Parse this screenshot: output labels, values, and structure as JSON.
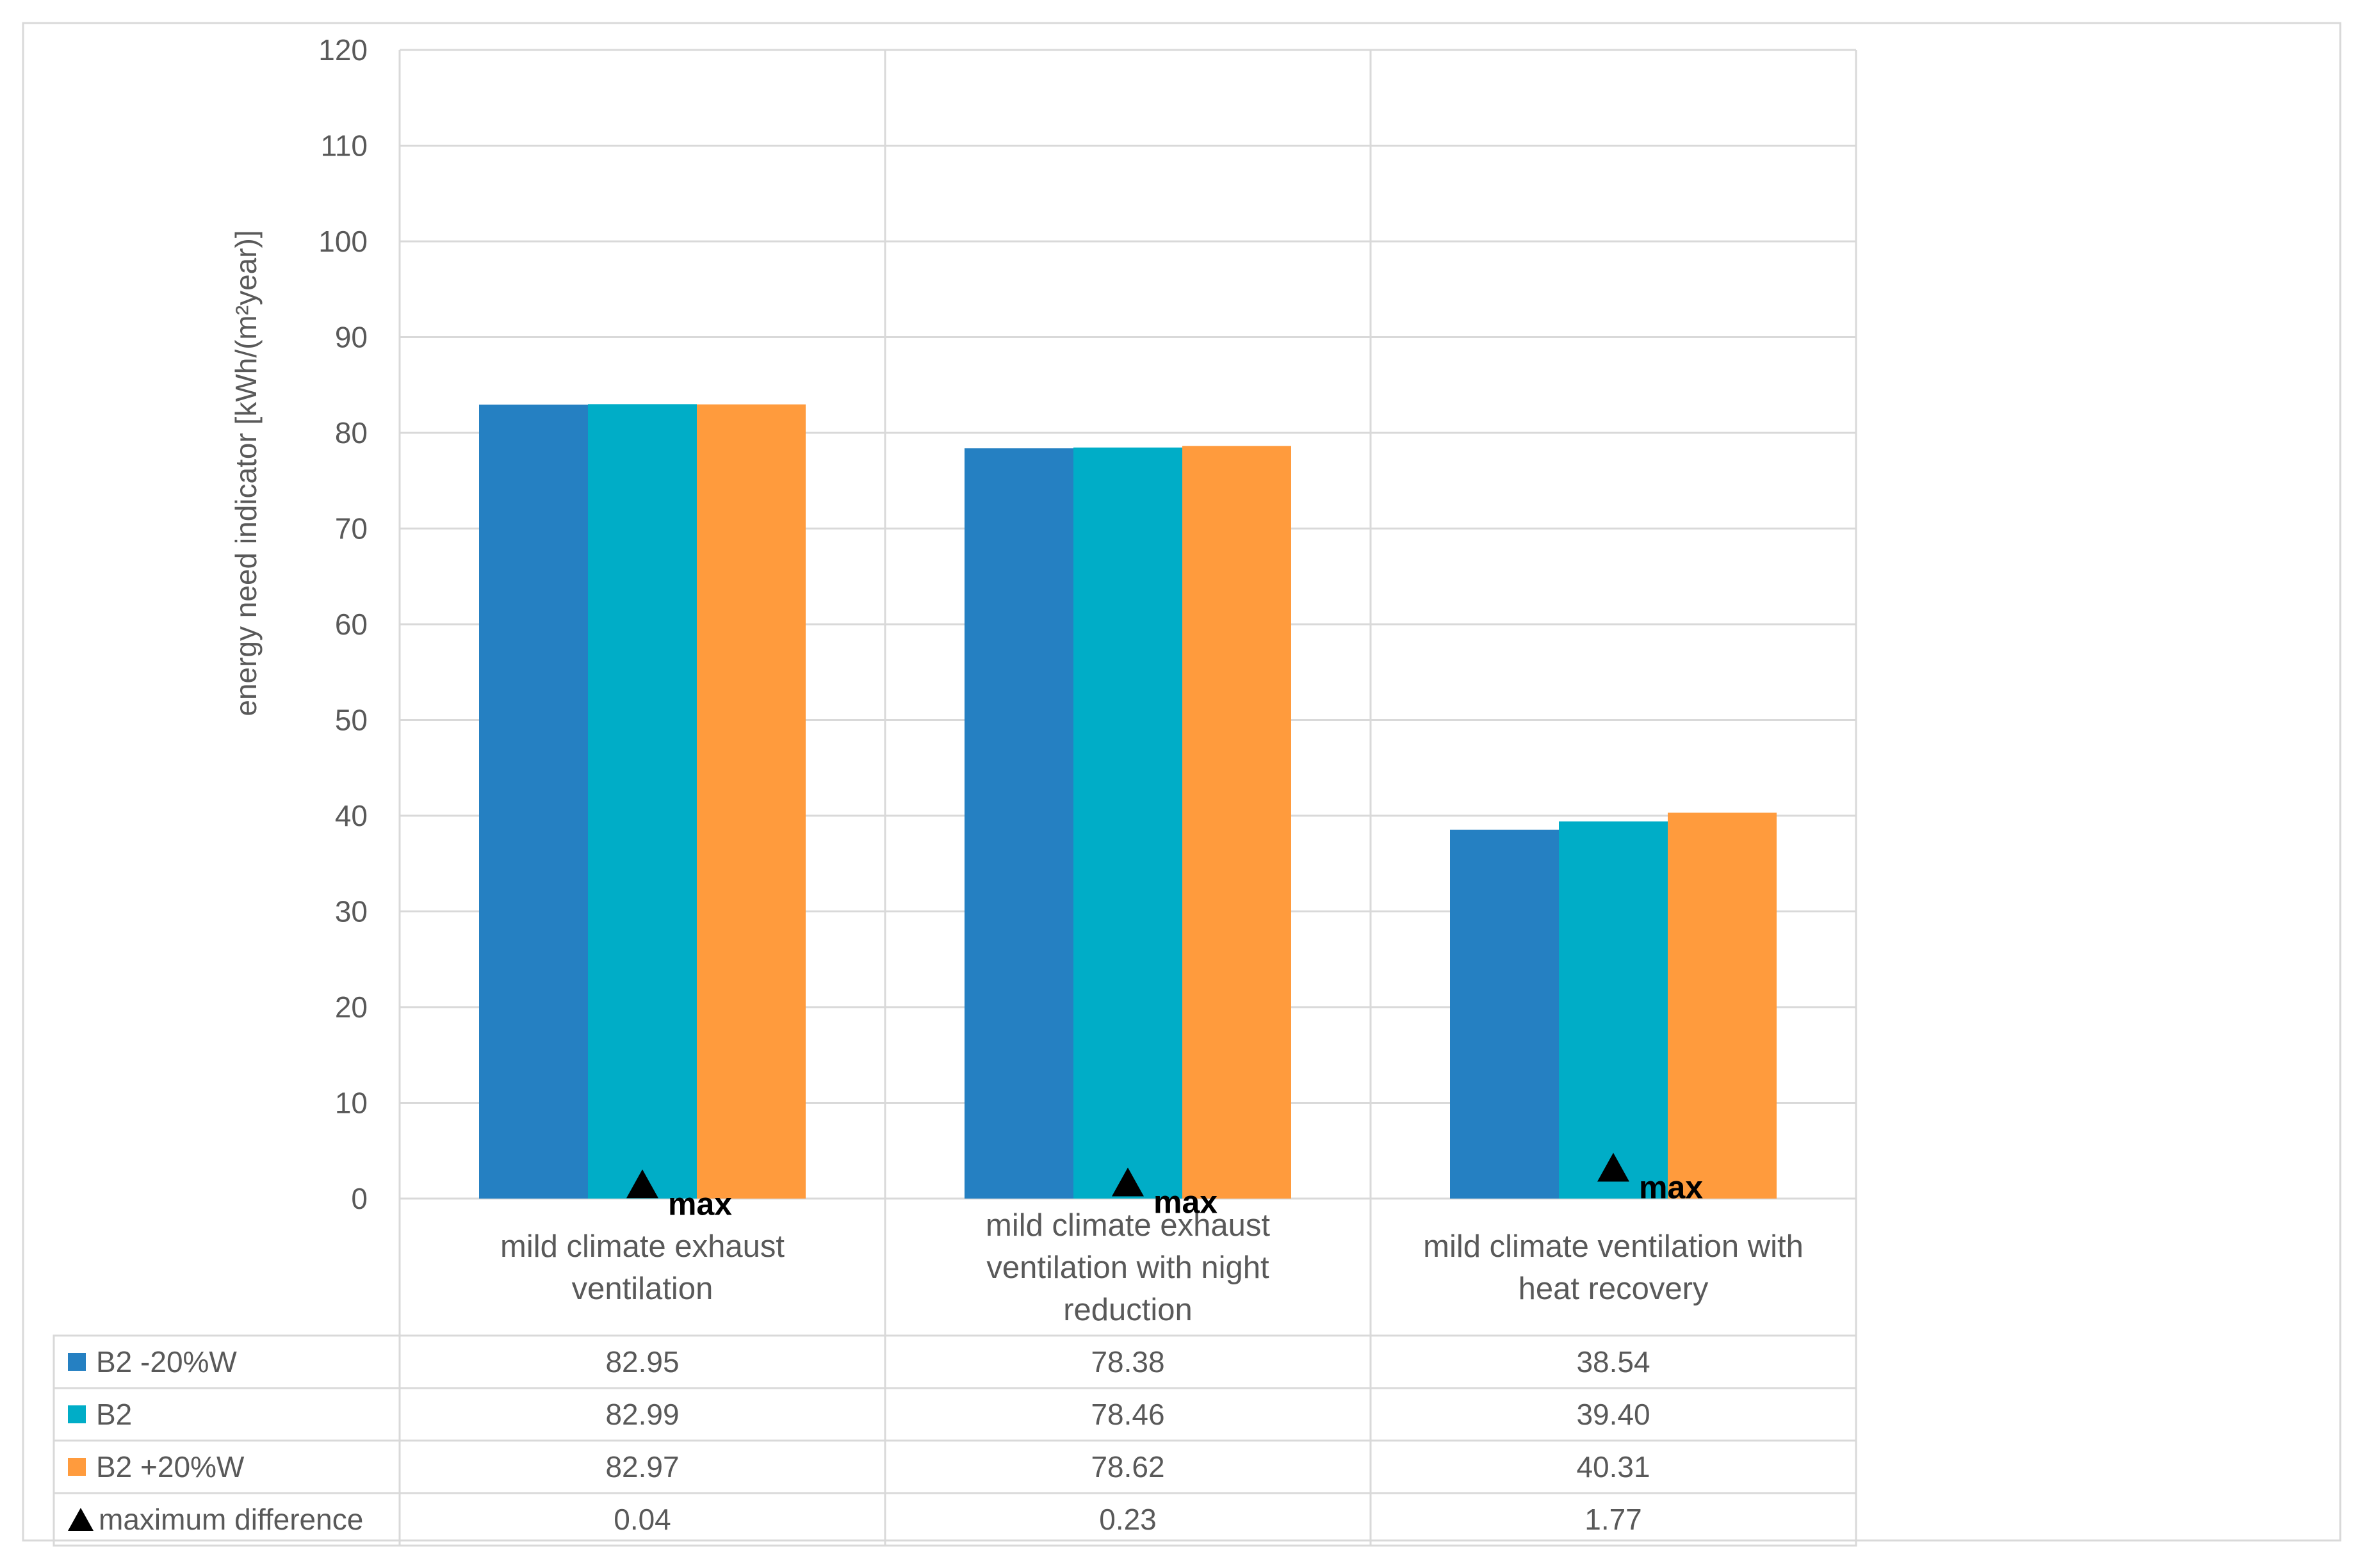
{
  "chart_data": {
    "type": "bar",
    "ylabel": "energy need indicator [kWh/(m²year)]",
    "ylim": [
      0,
      120
    ],
    "yticks": [
      0,
      10,
      20,
      30,
      40,
      50,
      60,
      70,
      80,
      90,
      100,
      110,
      120
    ],
    "grid": true,
    "legend": "data-table",
    "categories": [
      [
        "mild climate exhaust",
        "ventilation"
      ],
      [
        "mild climate exhaust",
        "ventilation with night",
        "reduction"
      ],
      [
        "mild climate ventilation with",
        "heat recovery"
      ]
    ],
    "series": [
      {
        "name": "B2 -20%W",
        "color": "#2580c2",
        "values": [
          82.95,
          78.38,
          38.54
        ],
        "labels": [
          "82.95",
          "78.38",
          "38.54"
        ]
      },
      {
        "name": "B2",
        "color": "#00adc7",
        "values": [
          82.99,
          78.46,
          39.4
        ],
        "labels": [
          "82.99",
          "78.46",
          "39.40"
        ]
      },
      {
        "name": "B2 +20%W",
        "color": "#ff9b3d",
        "values": [
          82.97,
          78.62,
          40.31
        ],
        "labels": [
          "82.97",
          "78.62",
          "40.31"
        ]
      }
    ],
    "marker_series": {
      "name": "maximum difference",
      "marker": "triangle",
      "marker_label": "max",
      "values": [
        0.04,
        0.23,
        1.77
      ],
      "labels": [
        "0.04",
        "0.23",
        "1.77"
      ]
    }
  }
}
